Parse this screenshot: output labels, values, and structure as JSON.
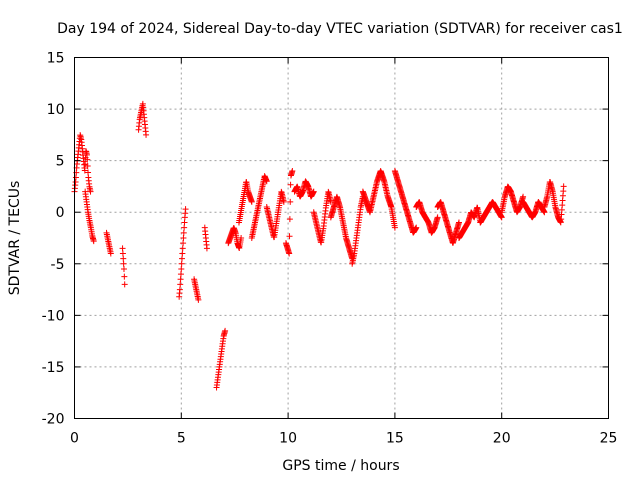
{
  "chart_data": {
    "type": "scatter",
    "title": "Day 194 of 2024, Sidereal Day-to-day VTEC variation (SDTVAR) for receiver cas1",
    "xlabel": "GPS time / hours",
    "ylabel": "SDTVAR / TECUs",
    "xlim": [
      0,
      25
    ],
    "ylim": [
      -20,
      15
    ],
    "xticks": [
      0,
      5,
      10,
      15,
      20,
      25
    ],
    "yticks": [
      -20,
      -15,
      -10,
      -5,
      0,
      5,
      10,
      15
    ],
    "xtick_labels": [
      "0",
      "5",
      "10",
      "15",
      "20",
      "25"
    ],
    "ytick_labels": [
      "-20",
      "-15",
      "-10",
      "-5",
      "0",
      "5",
      "10",
      "15"
    ],
    "grid": true,
    "marker": "+",
    "marker_color": "#ff0000",
    "series": [
      {
        "name": "SDTVAR",
        "color": "#ff0000",
        "segments": [
          {
            "t0": 0.0,
            "t1": 0.75,
            "v": [
              2.0,
              3.0,
              4.5,
              5.5,
              6.5,
              7.5,
              7.0,
              6.0,
              5.0,
              4.0,
              6.0,
              5.5,
              3.5,
              2.5,
              2.0
            ]
          },
          {
            "t0": 0.5,
            "t1": 0.9,
            "v": [
              2.0,
              1.0,
              0.0,
              -0.8,
              -1.5,
              -2.3,
              -2.8
            ]
          },
          {
            "t0": 1.5,
            "t1": 1.7,
            "v": [
              -2.0,
              -2.5,
              -3.0,
              -3.5,
              -4.0
            ]
          },
          {
            "t0": 2.25,
            "t1": 2.35,
            "v": [
              -3.5,
              -4.5,
              -5.5,
              -7.0
            ]
          },
          {
            "t0": 3.0,
            "t1": 3.35,
            "v": [
              8.0,
              9.0,
              9.5,
              10.0,
              10.5,
              9.5,
              8.5,
              7.5
            ]
          },
          {
            "t0": 4.9,
            "t1": 5.2,
            "v": [
              -8.2,
              -7.5,
              -6.5,
              -5.5,
              -4.5,
              -3.5,
              -2.5,
              -1.5,
              -0.5,
              0.3
            ]
          },
          {
            "t0": 5.6,
            "t1": 5.8,
            "v": [
              -6.5,
              -7.0,
              -7.5,
              -8.0,
              -8.5
            ]
          },
          {
            "t0": 6.1,
            "t1": 6.2,
            "v": [
              -1.5,
              -2.5,
              -3.5
            ]
          },
          {
            "t0": 6.65,
            "t1": 7.05,
            "v": [
              -17.0,
              -16.0,
              -15.0,
              -14.0,
              -13.0,
              -12.0,
              -11.5
            ]
          },
          {
            "t0": 7.2,
            "t1": 7.8,
            "v": [
              -3.0,
              -2.5,
              -2.0,
              -1.5,
              -2.0,
              -3.0,
              -3.5,
              -2.5
            ]
          },
          {
            "t0": 7.7,
            "t1": 8.3,
            "v": [
              -1.0,
              0.0,
              1.0,
              2.0,
              3.0,
              2.0,
              1.5,
              1.0
            ]
          },
          {
            "t0": 8.3,
            "t1": 9.0,
            "v": [
              -2.5,
              -1.5,
              -0.5,
              0.5,
              1.5,
              2.5,
              3.5,
              3.0
            ]
          },
          {
            "t0": 9.0,
            "t1": 9.8,
            "v": [
              0.5,
              -0.5,
              -1.5,
              -2.5,
              -1.0,
              0.5,
              2.0,
              1.0
            ]
          },
          {
            "t0": 9.9,
            "t1": 10.2,
            "v": [
              -3.0,
              -3.5,
              -4.0,
              3.5,
              4.0
            ]
          },
          {
            "t0": 10.3,
            "t1": 11.2,
            "v": [
              2.0,
              2.5,
              1.5,
              2.0,
              3.0,
              2.5,
              1.5,
              2.0
            ]
          },
          {
            "t0": 11.2,
            "t1": 12.0,
            "v": [
              0.0,
              -1.0,
              -2.0,
              -3.0,
              -1.5,
              0.5,
              2.0,
              1.0
            ]
          },
          {
            "t0": 12.0,
            "t1": 13.0,
            "v": [
              -0.5,
              0.5,
              1.5,
              0.5,
              -1.0,
              -2.5,
              -3.5,
              -4.5
            ]
          },
          {
            "t0": 13.0,
            "t1": 13.5,
            "v": [
              -5.0,
              -4.0,
              -2.5,
              -1.0,
              0.5,
              1.5
            ]
          },
          {
            "t0": 13.5,
            "t1": 15.0,
            "v": [
              2.0,
              1.0,
              0.0,
              1.5,
              3.0,
              4.0,
              3.0,
              1.5,
              0.5,
              -1.5
            ]
          },
          {
            "t0": 15.0,
            "t1": 16.0,
            "v": [
              4.0,
              3.0,
              2.0,
              1.0,
              0.0,
              -1.0,
              -2.0,
              -1.5
            ]
          },
          {
            "t0": 16.0,
            "t1": 17.0,
            "v": [
              0.5,
              1.0,
              0.0,
              -0.5,
              -1.0,
              -2.0,
              -1.5,
              -0.5
            ]
          },
          {
            "t0": 17.0,
            "t1": 18.0,
            "v": [
              0.5,
              1.0,
              0.0,
              -1.0,
              -2.0,
              -3.0,
              -2.0,
              -1.0
            ]
          },
          {
            "t0": 18.0,
            "t1": 19.0,
            "v": [
              -2.5,
              -2.0,
              -1.5,
              -1.0,
              0.0,
              -0.5,
              0.5,
              -1.0
            ]
          },
          {
            "t0": 19.0,
            "t1": 20.0,
            "v": [
              -1.0,
              -0.5,
              0.0,
              0.5,
              1.0,
              0.5,
              0.0,
              -0.5
            ]
          },
          {
            "t0": 20.0,
            "t1": 21.0,
            "v": [
              0.0,
              1.5,
              2.5,
              2.0,
              1.0,
              0.0,
              0.5,
              1.5
            ]
          },
          {
            "t0": 21.0,
            "t1": 22.0,
            "v": [
              1.0,
              0.5,
              0.0,
              -0.5,
              0.0,
              1.0,
              0.5,
              0.0
            ]
          },
          {
            "t0": 22.0,
            "t1": 22.9,
            "v": [
              0.5,
              1.5,
              3.0,
              2.0,
              0.5,
              -0.5,
              -1.0,
              2.5
            ]
          }
        ]
      }
    ]
  }
}
